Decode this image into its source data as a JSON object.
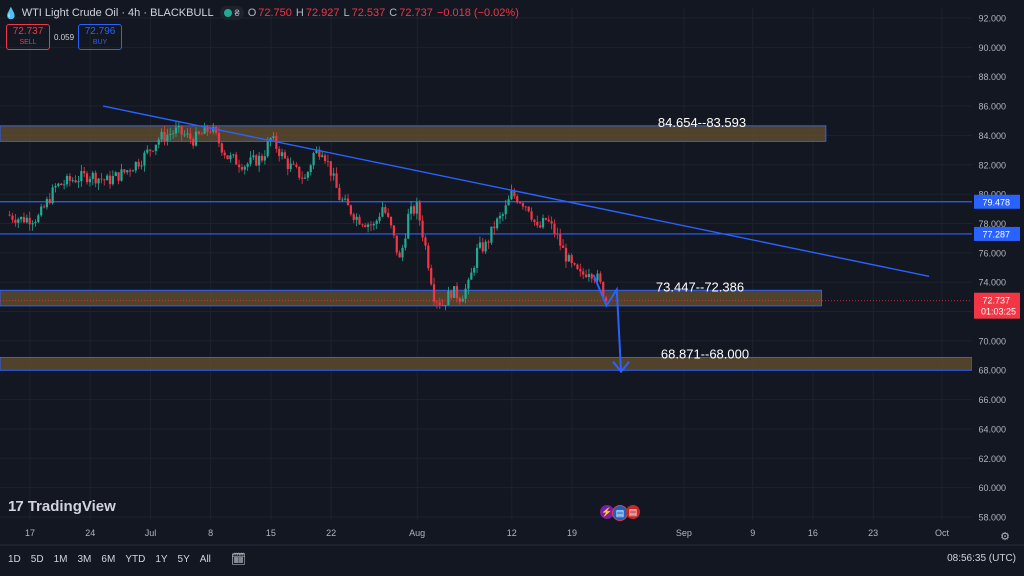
{
  "header": {
    "symbol": "WTI Light Crude Oil · 4h · BLACKBULL",
    "open_key": "O",
    "open": "72.750",
    "high_key": "H",
    "high": "72.927",
    "low_key": "L",
    "low": "72.537",
    "close_key": "C",
    "close": "72.737",
    "change": "−0.018 (−0.02%)"
  },
  "trade": {
    "sell_price": "72.737",
    "sell_label": "SELL",
    "spread": "0.059",
    "buy_price": "72.796",
    "buy_label": "BUY"
  },
  "brand": "TradingView",
  "timeframes": [
    "1D",
    "5D",
    "1M",
    "3M",
    "6M",
    "YTD",
    "1Y",
    "5Y",
    "All"
  ],
  "clock": "08:56:35 (UTC)",
  "colors": {
    "bg": "#131722",
    "up": "#22ab94",
    "down": "#f23645",
    "line": "#2962ff",
    "zone": "#5d4a2e"
  },
  "chart_data": {
    "type": "candlestick",
    "title": "WTI Light Crude Oil · 4h · BLACKBULL",
    "ylim": [
      57.5,
      92.5
    ],
    "y_ticks": [
      "92.000",
      "90.000",
      "88.000",
      "86.000",
      "84.000",
      "82.000",
      "80.000",
      "78.000",
      "76.000",
      "74.000",
      "72.000",
      "70.000",
      "68.000",
      "66.000",
      "64.000",
      "62.000",
      "60.000",
      "58.000"
    ],
    "y_tick_values": [
      92,
      90,
      88,
      86,
      84,
      82,
      80,
      78,
      76,
      74,
      72,
      70,
      68,
      66,
      64,
      62,
      60,
      58
    ],
    "x_ticks": [
      {
        "label": "17",
        "day": 17
      },
      {
        "label": "24",
        "day": 24
      },
      {
        "label": "Jul",
        "day": 31
      },
      {
        "label": "8",
        "day": 38
      },
      {
        "label": "15",
        "day": 45
      },
      {
        "label": "22",
        "day": 52
      },
      {
        "label": "Aug",
        "day": 62
      },
      {
        "label": "12",
        "day": 73
      },
      {
        "label": "19",
        "day": 80
      },
      {
        "label": "Sep",
        "day": 93
      },
      {
        "label": "9",
        "day": 101
      },
      {
        "label": "16",
        "day": 108
      },
      {
        "label": "23",
        "day": 115
      },
      {
        "label": "Oct",
        "day": 123
      }
    ],
    "x_range_days": [
      14.3,
      125
    ],
    "price_path": [
      [
        14.3,
        78.6
      ],
      [
        16,
        78.3
      ],
      [
        18,
        78.4
      ],
      [
        20,
        80.5
      ],
      [
        22,
        81.0
      ],
      [
        24,
        81.3
      ],
      [
        26,
        80.9
      ],
      [
        28,
        81.5
      ],
      [
        30,
        82.4
      ],
      [
        32,
        83.8
      ],
      [
        34,
        84.3
      ],
      [
        36,
        83.7
      ],
      [
        38,
        84.5
      ],
      [
        40,
        82.5
      ],
      [
        42,
        82.0
      ],
      [
        44,
        82.5
      ],
      [
        45,
        83.8
      ],
      [
        47,
        82.0
      ],
      [
        49,
        81.0
      ],
      [
        50,
        82.8
      ],
      [
        51,
        83.1
      ],
      [
        52,
        81.5
      ],
      [
        53,
        79.7
      ],
      [
        55,
        78.4
      ],
      [
        57,
        77.8
      ],
      [
        58,
        79.2
      ],
      [
        59,
        77.6
      ],
      [
        60,
        75.4
      ],
      [
        61,
        78.6
      ],
      [
        62,
        79.1
      ],
      [
        63,
        76.3
      ],
      [
        64,
        73.0
      ],
      [
        65,
        72.5
      ],
      [
        66,
        73.4
      ],
      [
        67,
        73.0
      ],
      [
        68,
        73.8
      ],
      [
        69,
        76.2
      ],
      [
        70,
        76.5
      ],
      [
        71,
        77.9
      ],
      [
        72,
        78.6
      ],
      [
        73,
        80.0
      ],
      [
        74,
        79.6
      ],
      [
        75,
        79.1
      ],
      [
        76,
        77.5
      ],
      [
        77,
        78.3
      ],
      [
        78,
        77.4
      ],
      [
        79,
        76.1
      ],
      [
        80,
        75.0
      ],
      [
        81,
        74.4
      ],
      [
        82,
        74.9
      ],
      [
        83,
        74.2
      ],
      [
        84,
        72.74
      ]
    ],
    "last_price": "72.737",
    "countdown": "01:03:25",
    "trendline": {
      "from": [
        25.5,
        86.0
      ],
      "to": [
        121.5,
        74.4
      ]
    },
    "horizontal_lines": [
      {
        "price": 79.478,
        "label": "79.478"
      },
      {
        "price": 77.287,
        "label": "77.287"
      }
    ],
    "zones": [
      {
        "top": 84.654,
        "bottom": 83.593,
        "label": "84.654--83.593",
        "x_end_day": 109.5
      },
      {
        "top": 73.447,
        "bottom": 72.386,
        "label": "73.447--72.386",
        "x_end_day": 109
      },
      {
        "top": 68.871,
        "bottom": 68.0,
        "label": "68.871--68.000",
        "x_end_day": 130
      }
    ],
    "projection": [
      [
        82.5,
        74.5
      ],
      [
        84,
        72.4
      ],
      [
        85.2,
        73.5
      ],
      [
        85.7,
        67.9
      ]
    ],
    "grid": true
  }
}
